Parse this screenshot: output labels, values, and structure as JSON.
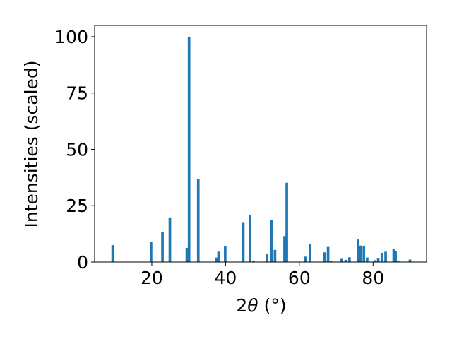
{
  "chart_data": {
    "type": "bar",
    "title": "",
    "xlabel_main": "2",
    "xlabel_theta": "θ",
    "xlabel_unit": "(°)",
    "ylabel": "Intensities (scaled)",
    "xlim": [
      4.5,
      94.5
    ],
    "ylim": [
      0,
      105
    ],
    "xticks": [
      20,
      40,
      60,
      80
    ],
    "yticks": [
      0,
      25,
      50,
      75,
      100
    ],
    "grid": false,
    "bar_color": "#1f77b4",
    "bar_width": 0.7,
    "bars": [
      {
        "x": 9.4,
        "y": 7.5
      },
      {
        "x": 19.8,
        "y": 9.0
      },
      {
        "x": 22.9,
        "y": 13.3
      },
      {
        "x": 24.9,
        "y": 19.8
      },
      {
        "x": 29.5,
        "y": 6.3
      },
      {
        "x": 30.1,
        "y": 100.0
      },
      {
        "x": 32.6,
        "y": 36.8
      },
      {
        "x": 37.6,
        "y": 2.0
      },
      {
        "x": 38.1,
        "y": 4.6
      },
      {
        "x": 39.9,
        "y": 7.2
      },
      {
        "x": 44.8,
        "y": 17.4
      },
      {
        "x": 46.6,
        "y": 20.8
      },
      {
        "x": 47.6,
        "y": 0.6
      },
      {
        "x": 51.2,
        "y": 3.5
      },
      {
        "x": 52.4,
        "y": 18.8
      },
      {
        "x": 53.4,
        "y": 5.4
      },
      {
        "x": 56.0,
        "y": 11.5
      },
      {
        "x": 56.6,
        "y": 35.2
      },
      {
        "x": 61.6,
        "y": 2.4
      },
      {
        "x": 62.9,
        "y": 7.9
      },
      {
        "x": 66.8,
        "y": 4.3
      },
      {
        "x": 67.8,
        "y": 6.7
      },
      {
        "x": 68.6,
        "y": 0.3
      },
      {
        "x": 71.5,
        "y": 1.4
      },
      {
        "x": 72.6,
        "y": 1.0
      },
      {
        "x": 73.6,
        "y": 2.1
      },
      {
        "x": 75.9,
        "y": 10.0
      },
      {
        "x": 76.6,
        "y": 7.3
      },
      {
        "x": 77.5,
        "y": 6.9
      },
      {
        "x": 78.4,
        "y": 2.0
      },
      {
        "x": 80.6,
        "y": 0.8
      },
      {
        "x": 81.4,
        "y": 1.6
      },
      {
        "x": 82.4,
        "y": 4.1
      },
      {
        "x": 83.4,
        "y": 4.6
      },
      {
        "x": 85.6,
        "y": 5.8
      },
      {
        "x": 86.1,
        "y": 4.9
      },
      {
        "x": 86.8,
        "y": 0.3
      },
      {
        "x": 90.0,
        "y": 1.1
      }
    ]
  }
}
